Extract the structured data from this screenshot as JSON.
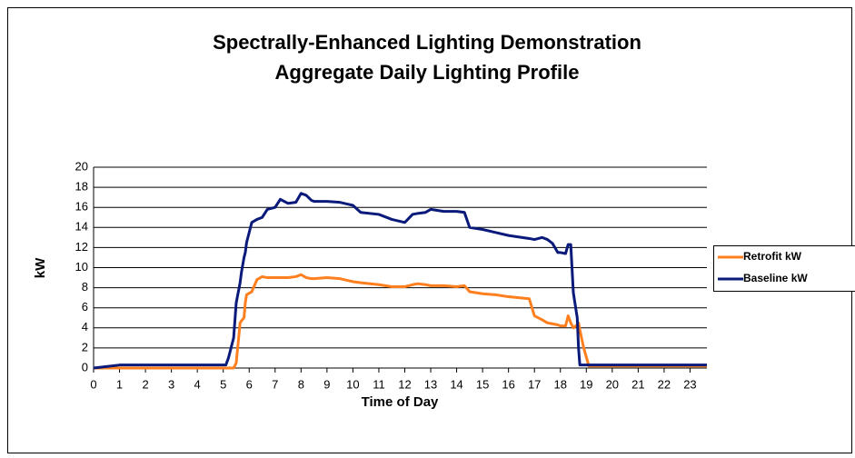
{
  "chart_data": {
    "type": "line",
    "title": "Spectrally-Enhanced Lighting Demonstration",
    "subtitle": "Aggregate Daily Lighting Profile",
    "x_label": "Time of Day",
    "y_label": "kW",
    "x": [
      0,
      1,
      5.1,
      5.2,
      5.4,
      5.5,
      5.65,
      5.7,
      5.8,
      5.85,
      5.9,
      6.1,
      6.3,
      6.5,
      6.7,
      7.0,
      7.2,
      7.5,
      7.8,
      8.0,
      8.2,
      8.4,
      8.5,
      9.0,
      9.5,
      10.0,
      10.3,
      11.0,
      11.5,
      12.0,
      12.3,
      12.5,
      12.8,
      13.0,
      13.5,
      14.0,
      14.3,
      14.5,
      15.0,
      15.5,
      16.0,
      16.8,
      17.0,
      17.3,
      17.5,
      17.7,
      17.9,
      18.0,
      18.2,
      18.3,
      18.4,
      18.5,
      18.65,
      18.7,
      18.75,
      18.9,
      19.1,
      23.65
    ],
    "series": [
      {
        "name": "Retrofit kW",
        "color": "#ff7f1f",
        "values": [
          0,
          0,
          0,
          0,
          0,
          0.5,
          4.5,
          4.7,
          5,
          6.5,
          7.3,
          7.6,
          8.8,
          9.1,
          9.0,
          9,
          9.0,
          9,
          9.1,
          9.3,
          9.0,
          8.9,
          8.9,
          9.0,
          8.9,
          8.6,
          8.5,
          8.3,
          8.1,
          8.1,
          8.3,
          8.4,
          8.3,
          8.2,
          8.2,
          8.1,
          8.2,
          7.6,
          7.4,
          7.3,
          7.1,
          6.9,
          5.2,
          4.8,
          4.5,
          4.4,
          4.3,
          4.2,
          4.2,
          5.2,
          4.5,
          4.0,
          4.3,
          4.5,
          3.8,
          2,
          0.2,
          0.2
        ]
      },
      {
        "name": "Baseline kW",
        "color": "#0a1a7a",
        "values": [
          0,
          0.3,
          0.3,
          1,
          3,
          6.5,
          8.5,
          9.5,
          11,
          11.5,
          12.5,
          14.5,
          14.8,
          15,
          15.8,
          16,
          16.8,
          16.4,
          16.5,
          17.4,
          17.2,
          16.7,
          16.6,
          16.6,
          16.5,
          16.2,
          15.5,
          15.3,
          14.8,
          14.5,
          15.3,
          15.4,
          15.5,
          15.8,
          15.6,
          15.6,
          15.5,
          14,
          13.8,
          13.5,
          13.2,
          12.9,
          12.8,
          13,
          12.8,
          12.4,
          11.5,
          11.5,
          11.4,
          12.3,
          12.3,
          7.5,
          5,
          2,
          0.3,
          0.3,
          0.3,
          0.3
        ]
      }
    ],
    "xlim": [
      0,
      23.65
    ],
    "xticks": [
      0,
      1,
      2,
      3,
      4,
      5,
      6,
      7,
      8,
      9,
      10,
      11,
      12,
      13,
      14,
      15,
      16,
      17,
      18,
      19,
      20,
      21,
      22,
      23
    ],
    "ylim": [
      0,
      20
    ],
    "yticks": [
      0,
      2,
      4,
      6,
      8,
      10,
      12,
      14,
      16,
      18,
      20
    ],
    "grid": true,
    "legend": "right"
  }
}
